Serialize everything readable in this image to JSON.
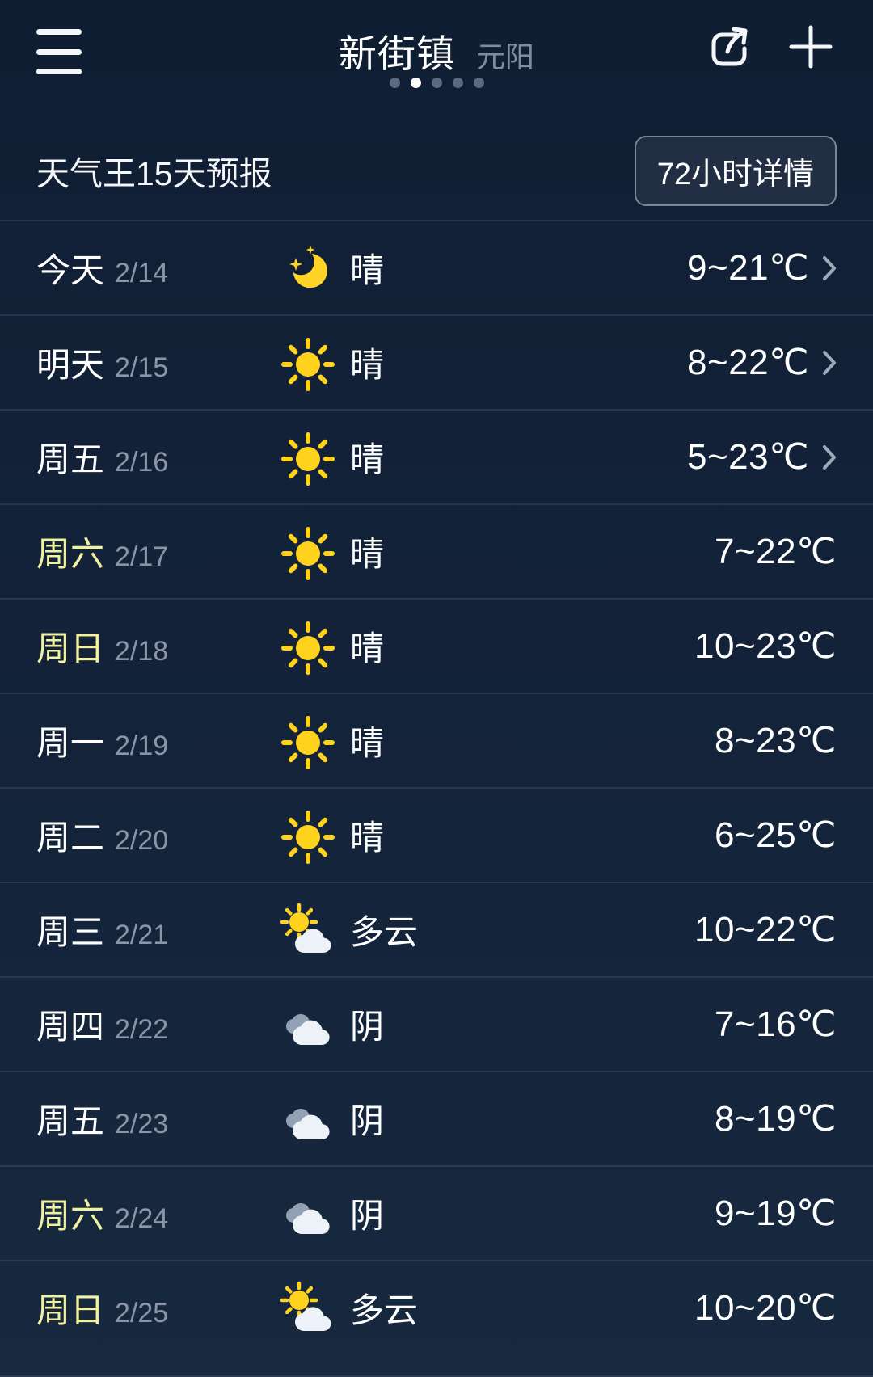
{
  "header": {
    "title": "新街镇",
    "subtitle": "元阳",
    "menu_icon": "hamburger-menu-icon",
    "share_icon": "share-icon",
    "add_icon": "add-icon",
    "page_dots": {
      "count": 5,
      "active_index": 1
    }
  },
  "section": {
    "title": "天气王15天预报",
    "detail_button_label": "72小时详情"
  },
  "colors": {
    "background_top": "#101e34",
    "background_bottom": "#17293f",
    "sun_yellow": "#ffd21e",
    "moon_yellow": "#ffd426",
    "weekend_day_yellow": "#f1f2a0",
    "date_gray": "#8c95a6",
    "subtitle_gray": "#828b9c",
    "separator": "rgba(134,158,194,0.17)",
    "cloud_front": "#edf2f8",
    "cloud_back": "#93a1b4",
    "chevron_gray": "#9fa9b8",
    "dot_inactive": "#5c6a80",
    "dot_active": "#ffffff"
  },
  "forecast": {
    "rows": [
      {
        "day": "今天",
        "date": "2/14",
        "icon": "moon-clear-icon",
        "condition": "晴",
        "temp": "9~21℃",
        "chevron": true,
        "weekend": false
      },
      {
        "day": "明天",
        "date": "2/15",
        "icon": "sunny-icon",
        "condition": "晴",
        "temp": "8~22℃",
        "chevron": true,
        "weekend": false
      },
      {
        "day": "周五",
        "date": "2/16",
        "icon": "sunny-icon",
        "condition": "晴",
        "temp": "5~23℃",
        "chevron": true,
        "weekend": false
      },
      {
        "day": "周六",
        "date": "2/17",
        "icon": "sunny-icon",
        "condition": "晴",
        "temp": "7~22℃",
        "chevron": false,
        "weekend": true
      },
      {
        "day": "周日",
        "date": "2/18",
        "icon": "sunny-icon",
        "condition": "晴",
        "temp": "10~23℃",
        "chevron": false,
        "weekend": true
      },
      {
        "day": "周一",
        "date": "2/19",
        "icon": "sunny-icon",
        "condition": "晴",
        "temp": "8~23℃",
        "chevron": false,
        "weekend": false
      },
      {
        "day": "周二",
        "date": "2/20",
        "icon": "sunny-icon",
        "condition": "晴",
        "temp": "6~25℃",
        "chevron": false,
        "weekend": false
      },
      {
        "day": "周三",
        "date": "2/21",
        "icon": "partly-cloudy-icon",
        "condition": "多云",
        "temp": "10~22℃",
        "chevron": false,
        "weekend": false
      },
      {
        "day": "周四",
        "date": "2/22",
        "icon": "overcast-icon",
        "condition": "阴",
        "temp": "7~16℃",
        "chevron": false,
        "weekend": false
      },
      {
        "day": "周五",
        "date": "2/23",
        "icon": "overcast-icon",
        "condition": "阴",
        "temp": "8~19℃",
        "chevron": false,
        "weekend": false
      },
      {
        "day": "周六",
        "date": "2/24",
        "icon": "overcast-icon",
        "condition": "阴",
        "temp": "9~19℃",
        "chevron": false,
        "weekend": true
      },
      {
        "day": "周日",
        "date": "2/25",
        "icon": "partly-cloudy-icon",
        "condition": "多云",
        "temp": "10~20℃",
        "chevron": false,
        "weekend": true
      }
    ]
  }
}
